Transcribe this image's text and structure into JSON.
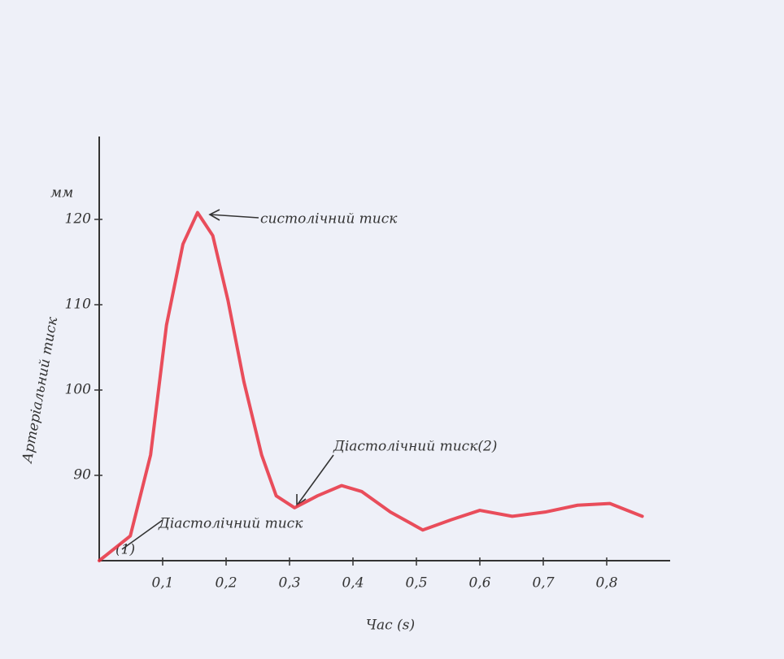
{
  "chart_data": {
    "type": "line",
    "y_label": "Артеріальний тиск",
    "y_unit": "мм",
    "x_label": "Час (s)",
    "annotations": [
      "систолічний тиск",
      "Діастолічний тиск(2)",
      "Діастолічний тиск",
      "(1)"
    ],
    "x": [
      0,
      0.049,
      0.081,
      0.106,
      0.132,
      0.155,
      0.179,
      0.203,
      0.228,
      0.256,
      0.279,
      0.308,
      0.344,
      0.382,
      0.414,
      0.459,
      0.51,
      0.555,
      0.6,
      0.651,
      0.703,
      0.754,
      0.805,
      0.856
    ],
    "series": [
      {
        "color": "#e8303f",
        "values": [
          80,
          82.9,
          92.4,
          107.6,
          117.1,
          120.8,
          118.1,
          110.5,
          101,
          92.4,
          87.6,
          86.2,
          87.6,
          88.8,
          88.1,
          85.7,
          83.6,
          84.8,
          85.9,
          85.2,
          85.7,
          86.5,
          86.7,
          85.2
        ]
      }
    ],
    "xlim": [
      0,
      0.9
    ],
    "ylim": [
      80,
      130
    ],
    "xticks": [
      {
        "value": 0.1,
        "label": "0,1"
      },
      {
        "value": 0.2,
        "label": "0,2"
      },
      {
        "value": 0.3,
        "label": "0,3"
      },
      {
        "value": 0.4,
        "label": "0,4"
      },
      {
        "value": 0.5,
        "label": "0,5"
      },
      {
        "value": 0.6,
        "label": "0,6"
      },
      {
        "value": 0.7,
        "label": "0,7"
      },
      {
        "value": 0.8,
        "label": "0,8"
      }
    ],
    "yticks": [
      90,
      100,
      110,
      120
    ],
    "grid": false
  }
}
